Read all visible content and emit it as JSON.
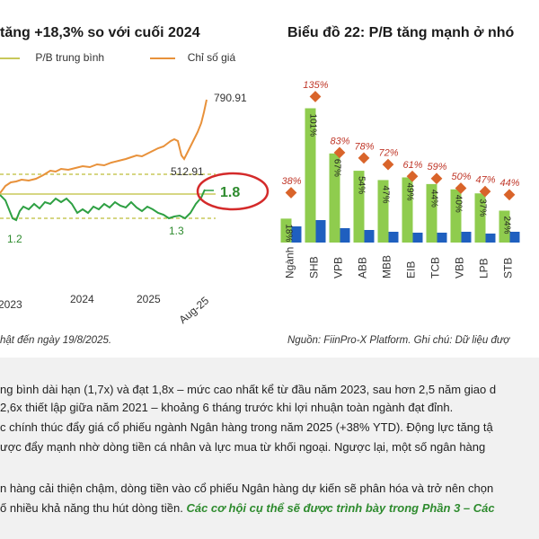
{
  "left_chart": {
    "title": "tăng +18,3% so với cuối 2024",
    "legend": {
      "pb": "P/B trung bình",
      "index": "Chỉ số giá"
    },
    "colors": {
      "pb": "#2ea043",
      "index": "#e8913a",
      "band": "#c8c85a",
      "circle": "#d42a2a"
    },
    "x_ticks": [
      "2023",
      "2024",
      "2025",
      "Aug-25"
    ],
    "labels": {
      "index_last": "790.91",
      "index_prev": "512.91",
      "pb_last": "1.8",
      "pb_low1": "1.2",
      "pb_low2": "1.3"
    },
    "note": "hật đến ngày 19/8/2025."
  },
  "right_chart": {
    "title": "Biểu đồ 22: P/B tăng mạnh ở nhó",
    "colors": {
      "bar_green": "#8fcc4e",
      "bar_blue": "#1f5fbf",
      "diamond": "#d9642a"
    },
    "note": "Nguồn: FiinPro-X Platform. Ghi chú: Dữ liệu đượ"
  },
  "chart_data": [
    {
      "type": "line",
      "x_ticks": [
        "2023",
        "2024",
        "2025",
        "Aug-25"
      ],
      "series": [
        {
          "name": "P/B trung bình",
          "key_values": [
            1.2,
            1.3,
            1.8
          ]
        },
        {
          "name": "Chỉ số giá",
          "key_values": [
            512.91,
            790.91
          ]
        }
      ]
    },
    {
      "type": "bar",
      "categories": [
        "Ngành",
        "SHB",
        "VPB",
        "ABB",
        "MBB",
        "EIB",
        "TCB",
        "VBB",
        "LPB",
        "STB"
      ],
      "series": [
        {
          "values": [
            18,
            101,
            67,
            54,
            47,
            49,
            44,
            40,
            37,
            24
          ]
        },
        {
          "values": [
            38,
            135,
            83,
            78,
            72,
            61,
            59,
            50,
            47,
            44
          ]
        }
      ],
      "bar_labels": [
        "18%",
        "101%",
        "67%",
        "54%",
        "47%",
        "49%",
        "44%",
        "40%",
        "37%",
        "24%"
      ],
      "diamond_labels": [
        "38%",
        "135%",
        "83%",
        "78%",
        "72%",
        "61%",
        "59%",
        "50%",
        "47%",
        "44%"
      ]
    }
  ],
  "paragraphs": [
    "ng bình dài hạn (1,7x) và đạt 1,8x – mức cao nhất kể từ đầu năm 2023, sau hơn 2,5 năm giao d",
    "2,6x thiết lập giữa năm 2021 – khoảng 6 tháng trước khi lợi nhuận toàn ngành đạt đỉnh.",
    "c chính thúc đẩy giá cổ phiếu ngành Ngân hàng trong năm 2025 (+38% YTD). Động lực tăng tậ",
    "ược đẩy mạnh nhờ dòng tiền cá nhân và lực mua từ khối ngoại. Ngược lại, một số ngân hàng",
    "n hàng cải thiện chậm, dòng tiền vào cổ phiếu Ngân hàng dự kiến sẽ phân hóa và trở nên chọn",
    "ố nhiều khả năng thu hút dòng tiền."
  ],
  "highlight": "Các cơ hội cụ thể sẽ được trình bày trong Phần 3 – Các"
}
